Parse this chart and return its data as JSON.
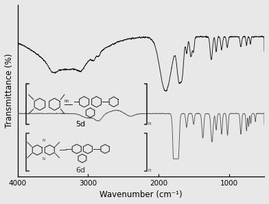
{
  "xlabel": "Wavenumber (cm⁻¹)",
  "ylabel": "Transmittance (%)",
  "xmin": 500,
  "xmax": 4000,
  "bg_color": "#e8e8e8",
  "spectrum1_color": "#111111",
  "spectrum2_color": "#555555",
  "label1": "5d",
  "label2": "6d",
  "xticks": [
    4000,
    3000,
    2000,
    1000
  ],
  "xtick_labels": [
    "4000",
    "3000",
    "2000",
    "1000"
  ]
}
